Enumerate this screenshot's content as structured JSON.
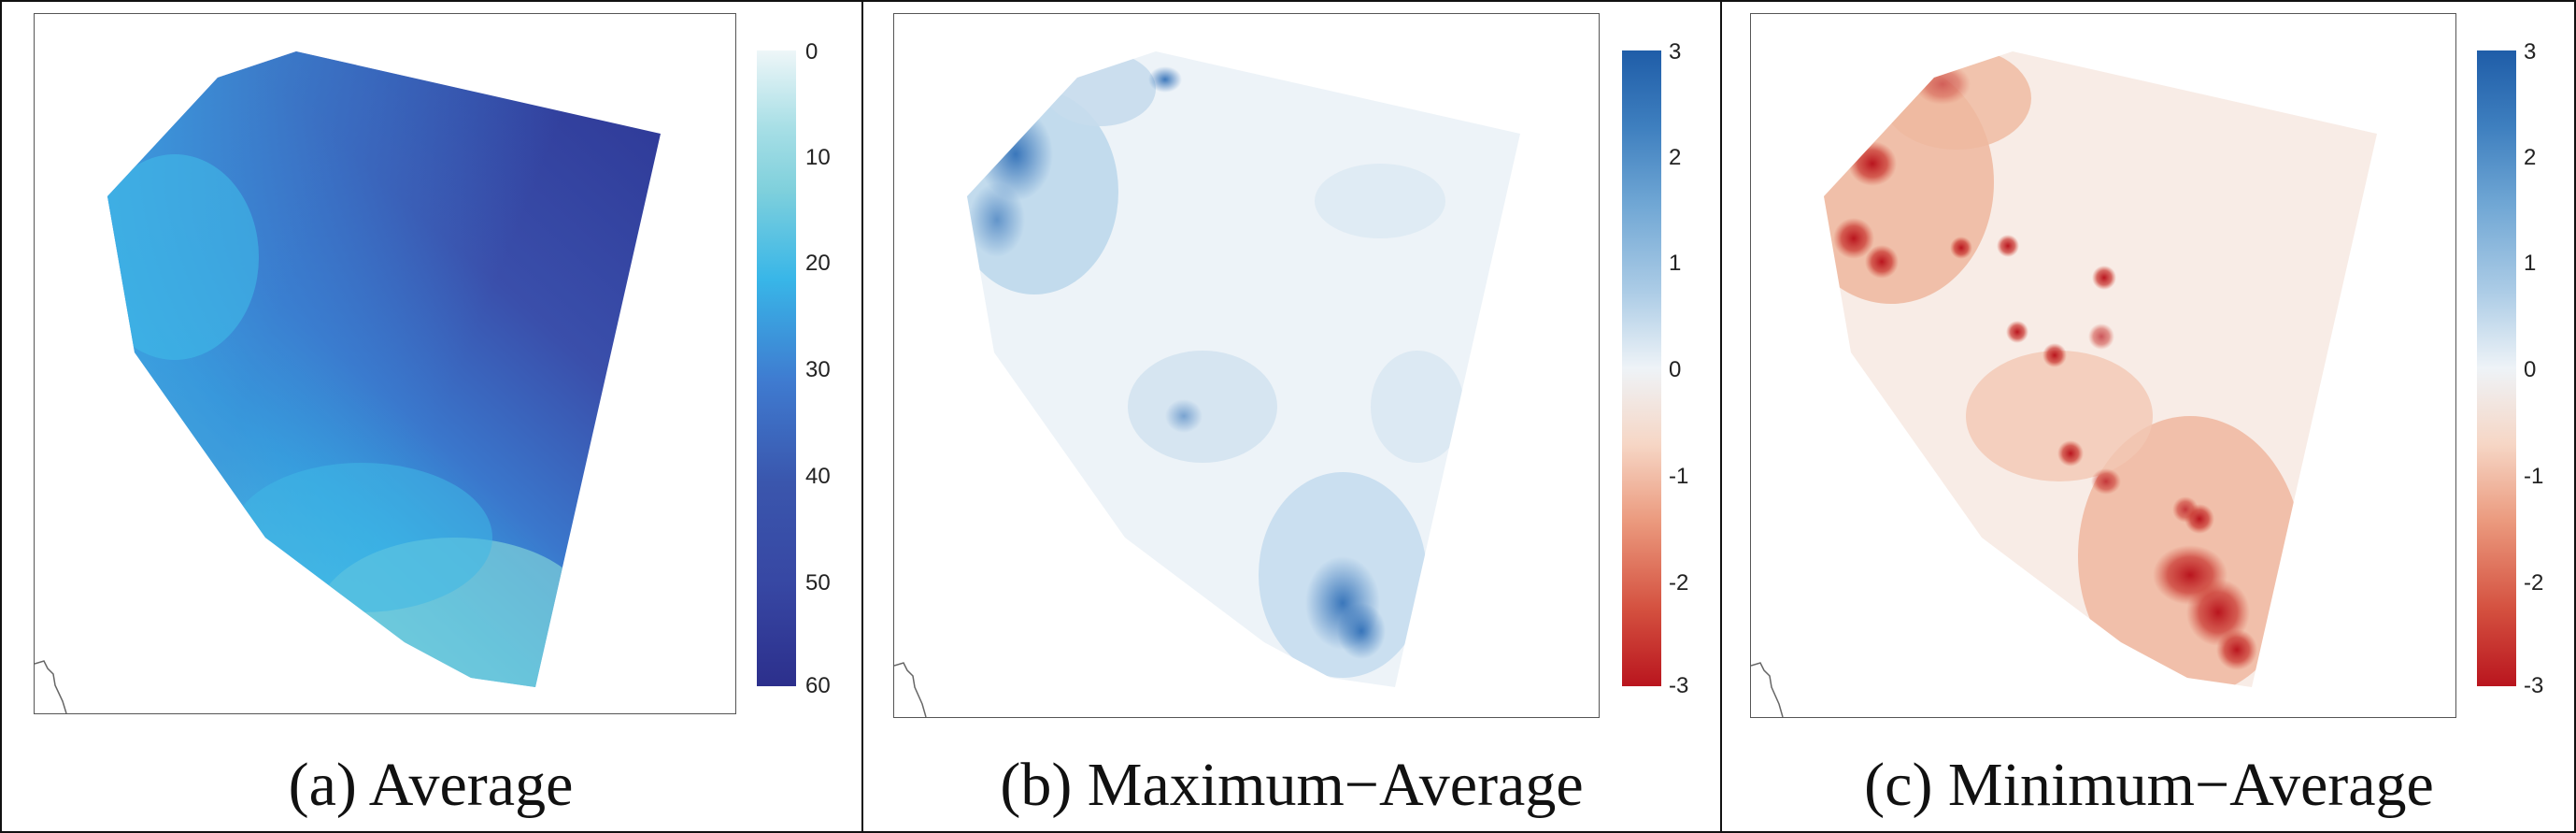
{
  "panels": [
    {
      "id": "a",
      "caption": "(a)  Average",
      "colorbar": {
        "ticks": [
          "0",
          "10",
          "20",
          "30",
          "40",
          "50",
          "60"
        ],
        "colors": [
          "#eef6f8",
          "#7fd0dc",
          "#2fb5e6",
          "#3f7bd0",
          "#3a56ad",
          "#3747a3",
          "#2c2f8c"
        ]
      }
    },
    {
      "id": "b",
      "caption": "(b)  Maximum−Average",
      "colorbar": {
        "ticks": [
          "3",
          "2",
          "1",
          "0",
          "-1",
          "-2",
          "-3"
        ],
        "colors": [
          "#1f5da8",
          "#6fa6d4",
          "#d3e6f3",
          "#f7f5f4",
          "#f2c0a6",
          "#dd6a55",
          "#b9151e"
        ]
      }
    },
    {
      "id": "c",
      "caption": "(c)  Minimum−Average",
      "colorbar": {
        "ticks": [
          "3",
          "2",
          "1",
          "0",
          "-1",
          "-2",
          "-3"
        ],
        "colors": [
          "#1f5da8",
          "#6fa6d4",
          "#d3e6f3",
          "#f7f5f4",
          "#f2c0a6",
          "#dd6a55",
          "#b9151e"
        ]
      }
    }
  ]
}
